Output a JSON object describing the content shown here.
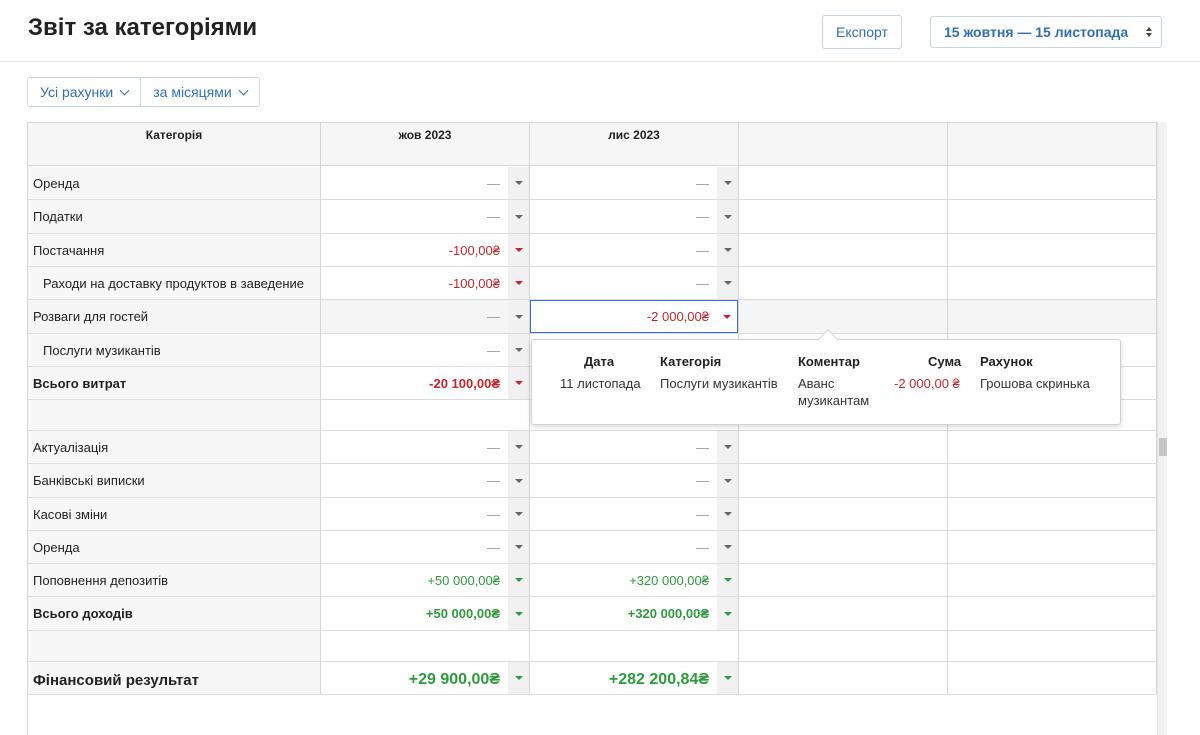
{
  "header": {
    "title": "Звіт за категоріями",
    "export_label": "Експорт",
    "date_range": "15 жовтня — 15 листопада"
  },
  "filters": {
    "accounts": "Усі рахунки",
    "period": "за місяцями"
  },
  "table": {
    "category_header": "Категорія",
    "months": [
      "жов 2023",
      "лис 2023"
    ],
    "rows": [
      {
        "label": "Оренда",
        "v1": "—",
        "v2": "—"
      },
      {
        "label": "Податки",
        "v1": "—",
        "v2": "—"
      },
      {
        "label": "Постачання",
        "v1": "-100,00₴",
        "v2": "—"
      },
      {
        "label": "Раходи на доставку продуктов в заведение",
        "v1": "-100,00₴",
        "v2": "—"
      },
      {
        "label": "Розваги для гостей",
        "v1": "—",
        "v2": "-2 000,00₴"
      },
      {
        "label": "Послуги музикантів",
        "v1": "—",
        "v2": ""
      },
      {
        "label": "Всього витрат",
        "v1": "-20 100,00₴",
        "v2": ""
      },
      {
        "label": "Актуалізація",
        "v1": "—",
        "v2": "—"
      },
      {
        "label": "Банківські виписки",
        "v1": "—",
        "v2": "—"
      },
      {
        "label": "Касові зміни",
        "v1": "—",
        "v2": "—"
      },
      {
        "label": "Оренда",
        "v1": "—",
        "v2": "—"
      },
      {
        "label": "Поповнення депозитів",
        "v1": "+50 000,00₴",
        "v2": "+320 000,00₴"
      },
      {
        "label": "Всього доходів",
        "v1": "+50 000,00₴",
        "v2": "+320 000,00₴"
      },
      {
        "label": "Фінансовий результат",
        "v1": "+29 900,00₴",
        "v2": "+282 200,84₴"
      }
    ]
  },
  "popup": {
    "headers": {
      "date": "Дата",
      "category": "Категорія",
      "comment": "Коментар",
      "amount": "Сума",
      "account": "Рахунок"
    },
    "row": {
      "date": "11 листопада",
      "category": "Послуги музикантів",
      "comment_line1": "Аванс",
      "comment_line2": "музикантам",
      "amount": "-2 000,00 ₴",
      "account": "Грошова скринька"
    }
  },
  "colors": {
    "accent": "#2f6fb0",
    "negative": "#c0262b",
    "positive": "#2e9a3c"
  }
}
